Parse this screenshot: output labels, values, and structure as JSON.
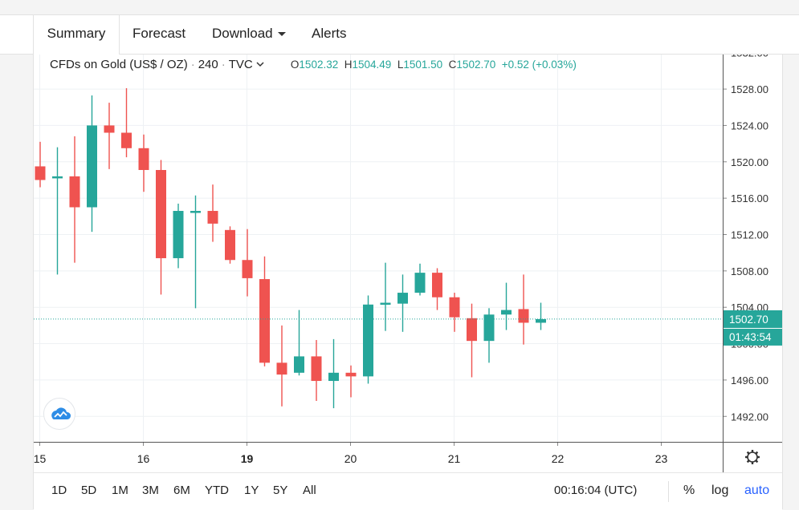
{
  "tabs": [
    {
      "label": "Summary",
      "active": true
    },
    {
      "label": "Forecast"
    },
    {
      "label": "Download"
    },
    {
      "label": "Alerts"
    }
  ],
  "legend": {
    "symbol": "CFDs on Gold (US$ / OZ)",
    "interval": "240",
    "source": "TVC",
    "o_label": "O",
    "o": "1502.32",
    "h_label": "H",
    "h": "1504.49",
    "l_label": "L",
    "l": "1501.50",
    "c_label": "C",
    "c": "1502.70",
    "change": "+0.52 (+0.03%)"
  },
  "price_tag": "1502.70",
  "countdown_tag": "01:43:54",
  "bottom": {
    "ranges": [
      "1D",
      "5D",
      "1M",
      "3M",
      "6M",
      "YTD",
      "1Y",
      "5Y",
      "All"
    ],
    "clock": "00:16:04 (UTC)",
    "percent": "%",
    "log": "log",
    "auto": "auto"
  },
  "colors": {
    "up": "#26a69a",
    "down": "#ef5350",
    "grid": "#eef1f4",
    "accent": "#2962ff"
  },
  "icons": {
    "logo": "tradingview-cloud-icon",
    "settings": "gear-icon",
    "dropdown": "chevron-down-icon"
  },
  "chart_data": {
    "type": "candlestick",
    "title": "",
    "ylim": [
      1489.2,
      1531.8
    ],
    "y_ticks": [
      1492,
      1496,
      1500,
      1504,
      1508,
      1512,
      1516,
      1520,
      1524,
      1528
    ],
    "y_tick_labels": [
      "1492.00",
      "1496.00",
      "1500.00",
      "1504.00",
      "1508.00",
      "1512.00",
      "1516.00",
      "1520.00",
      "1524.00",
      "1528.00"
    ],
    "x_ticks": [
      {
        "label": "15",
        "index": 0,
        "bold": false
      },
      {
        "label": "16",
        "index": 6,
        "bold": false
      },
      {
        "label": "19",
        "index": 12,
        "bold": true
      },
      {
        "label": "20",
        "index": 18,
        "bold": false
      },
      {
        "label": "21",
        "index": 24,
        "bold": false
      },
      {
        "label": "22",
        "index": 30,
        "bold": false
      },
      {
        "label": "23",
        "index": 36,
        "bold": false
      }
    ],
    "last_price": 1502.7,
    "candles": [
      {
        "o": 1519.5,
        "h": 1522.2,
        "l": 1517.2,
        "c": 1518.0
      },
      {
        "o": 1518.2,
        "h": 1521.6,
        "l": 1507.6,
        "c": 1518.4
      },
      {
        "o": 1518.4,
        "h": 1522.8,
        "l": 1508.9,
        "c": 1515.0
      },
      {
        "o": 1515.0,
        "h": 1527.3,
        "l": 1512.3,
        "c": 1524.0
      },
      {
        "o": 1524.0,
        "h": 1526.5,
        "l": 1519.2,
        "c": 1523.2
      },
      {
        "o": 1523.2,
        "h": 1528.1,
        "l": 1520.5,
        "c": 1521.5
      },
      {
        "o": 1521.5,
        "h": 1523.0,
        "l": 1516.7,
        "c": 1519.1
      },
      {
        "o": 1519.1,
        "h": 1520.2,
        "l": 1505.4,
        "c": 1509.4
      },
      {
        "o": 1509.4,
        "h": 1515.4,
        "l": 1508.3,
        "c": 1514.6
      },
      {
        "o": 1514.4,
        "h": 1516.3,
        "l": 1503.9,
        "c": 1514.6
      },
      {
        "o": 1514.6,
        "h": 1517.5,
        "l": 1511.2,
        "c": 1513.2
      },
      {
        "o": 1512.5,
        "h": 1512.9,
        "l": 1508.8,
        "c": 1509.2
      },
      {
        "o": 1509.2,
        "h": 1512.6,
        "l": 1505.2,
        "c": 1507.2
      },
      {
        "o": 1507.1,
        "h": 1509.6,
        "l": 1497.5,
        "c": 1497.9
      },
      {
        "o": 1497.9,
        "h": 1502.0,
        "l": 1493.1,
        "c": 1496.6
      },
      {
        "o": 1496.8,
        "h": 1503.7,
        "l": 1496.5,
        "c": 1498.6
      },
      {
        "o": 1498.6,
        "h": 1500.4,
        "l": 1493.7,
        "c": 1495.9
      },
      {
        "o": 1495.9,
        "h": 1500.5,
        "l": 1492.9,
        "c": 1496.8
      },
      {
        "o": 1496.8,
        "h": 1497.6,
        "l": 1494.1,
        "c": 1496.4
      },
      {
        "o": 1496.4,
        "h": 1505.3,
        "l": 1495.6,
        "c": 1504.3
      },
      {
        "o": 1504.3,
        "h": 1508.9,
        "l": 1501.4,
        "c": 1504.5
      },
      {
        "o": 1504.4,
        "h": 1507.6,
        "l": 1501.3,
        "c": 1505.6
      },
      {
        "o": 1505.6,
        "h": 1508.8,
        "l": 1505.3,
        "c": 1507.8
      },
      {
        "o": 1507.8,
        "h": 1508.3,
        "l": 1503.7,
        "c": 1505.1
      },
      {
        "o": 1505.1,
        "h": 1505.6,
        "l": 1501.3,
        "c": 1502.9
      },
      {
        "o": 1502.8,
        "h": 1504.4,
        "l": 1496.3,
        "c": 1500.3
      },
      {
        "o": 1500.3,
        "h": 1503.9,
        "l": 1497.9,
        "c": 1503.2
      },
      {
        "o": 1503.2,
        "h": 1506.7,
        "l": 1501.5,
        "c": 1503.7
      },
      {
        "o": 1503.8,
        "h": 1507.6,
        "l": 1499.9,
        "c": 1502.3
      },
      {
        "o": 1502.3,
        "h": 1504.5,
        "l": 1501.5,
        "c": 1502.7
      }
    ]
  }
}
